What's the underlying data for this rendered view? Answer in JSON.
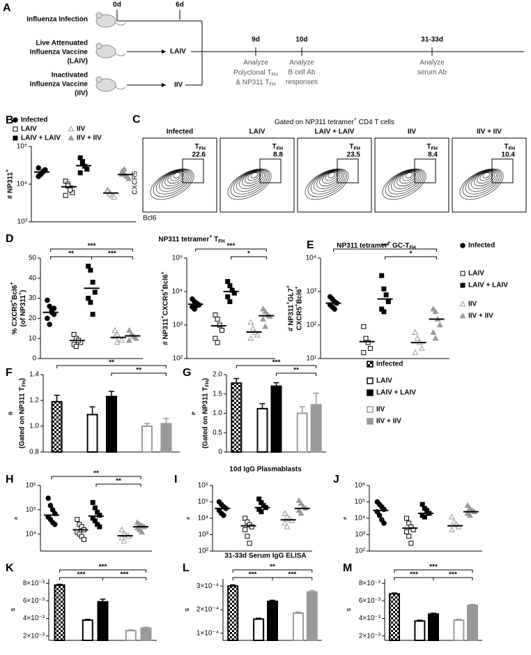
{
  "panel_a": {
    "label": "A",
    "start_day": "0d",
    "boost_day": "6d",
    "groups": [
      [
        "Influenza Infection"
      ],
      [
        "Live Attenuated",
        "Influenza Vaccine",
        "(LAIV)"
      ],
      [
        "Inactivated",
        "Influenza Vaccine",
        "(IIV)"
      ]
    ],
    "boosts": [
      "LAIV",
      "IIV"
    ],
    "analyses": [
      {
        "day": "9d",
        "lines": [
          "Analyze",
          [
            {
              "s": "Polyclonal T"
            },
            {
              "sub": "FH"
            }
          ],
          [
            {
              "s": "& NP311 T"
            },
            {
              "sub": "FH"
            }
          ]
        ]
      },
      {
        "day": "10d",
        "lines": [
          "Analyze",
          "B cell Ab",
          "responses"
        ]
      },
      {
        "day": "31-33d",
        "lines": [
          "Analyze",
          "serum Ab"
        ]
      }
    ]
  },
  "groups": [
    {
      "name": "Infected",
      "marker": "circle",
      "color": "#000000",
      "fill": true
    },
    {
      "name": "LAIV",
      "marker": "square",
      "color": "#000000",
      "fill": false
    },
    {
      "name": "LAIV + LAIV",
      "marker": "square",
      "color": "#000000",
      "fill": true
    },
    {
      "name": "IIV",
      "marker": "triangle",
      "color": "#999999",
      "fill": false
    },
    {
      "name": "IIV + IIV",
      "marker": "triangle",
      "color": "#999999",
      "fill": true
    }
  ],
  "panel_c": {
    "label": "C",
    "title": [
      {
        "s": "Gated on NP311 tetramer"
      },
      {
        "sup": "+"
      },
      {
        "s": " CD4 T cells"
      }
    ],
    "gate_label": [
      {
        "s": "T"
      },
      {
        "sub": "FH"
      }
    ],
    "x_axis": "Bcl6",
    "y_axis": "CXCR5",
    "plots": [
      {
        "name": "Infected",
        "gate": 22.6
      },
      {
        "name": "LAIV",
        "gate": 8.8
      },
      {
        "name": "LAIV + LAIV",
        "gate": 23.5
      },
      {
        "name": "IIV",
        "gate": 8.4
      },
      {
        "name": "IIV + IIV",
        "gate": 10.4
      }
    ]
  },
  "headings": [
    [
      {
        "s": "NP311 tetramer"
      },
      {
        "sup": "+"
      },
      {
        "s": " T"
      },
      {
        "sub": "FH"
      }
    ],
    [
      {
        "s": "NP311 tetramer"
      },
      {
        "sup": "+"
      },
      {
        "s": " GC-T"
      },
      {
        "sub": "FH"
      }
    ],
    "10d IgG Plasmablasts",
    "31-33d Serum IgG ELISA"
  ],
  "chart_data": [
    {
      "type": "strip",
      "label": "B",
      "log": true,
      "ylim": [
        1000,
        100000
      ],
      "yticks": [
        {
          "value": 1000,
          "label": "10³"
        },
        {
          "value": 10000,
          "label": "10⁴"
        },
        {
          "value": 100000,
          "label": "10⁵"
        }
      ],
      "ylabel": [
        [
          {
            "s": "# NP311"
          },
          {
            "sup": "+"
          }
        ]
      ],
      "series": [
        {
          "values": [
            16000,
            19000,
            21000,
            24000,
            27000,
            18000,
            22000
          ],
          "mean": 21000
        },
        {
          "values": [
            12000,
            10000,
            8000,
            6000,
            5000,
            9000,
            7000
          ],
          "mean": 8500
        },
        {
          "values": [
            50000,
            40000,
            30000,
            25000,
            20000,
            35000
          ],
          "mean": 31000
        },
        {
          "values": [
            7000,
            6000,
            5000,
            4500,
            6500,
            5500
          ],
          "mean": 5800
        },
        {
          "values": [
            22000,
            19000,
            16000,
            14000,
            18000,
            25000
          ],
          "mean": 18000
        }
      ]
    },
    {
      "type": "strip",
      "label": "D",
      "ylim": [
        0,
        50
      ],
      "yticks": [
        0,
        10,
        20,
        30,
        40,
        50
      ],
      "ylabel": [
        [
          {
            "s": "% CXCR5"
          },
          {
            "sup": "+"
          },
          {
            "s": "Bcl6"
          },
          {
            "sup": "+"
          }
        ],
        [
          {
            "s": "(of NP311"
          },
          {
            "sup": "+"
          },
          {
            "s": ")"
          }
        ]
      ],
      "series": [
        {
          "values": [
            29,
            26,
            24,
            22,
            20,
            17,
            23,
            25
          ],
          "mean": 23
        },
        {
          "values": [
            12,
            10,
            9,
            8,
            7,
            6,
            9
          ],
          "mean": 9
        },
        {
          "values": [
            46,
            44,
            38,
            33,
            30,
            28,
            22
          ],
          "mean": 35
        },
        {
          "values": [
            14,
            12,
            10,
            9,
            11,
            8
          ],
          "mean": 10.5
        },
        {
          "values": [
            14,
            12,
            11,
            10,
            9,
            12
          ],
          "mean": 11.3
        }
      ],
      "brackets": [
        {
          "from": 0,
          "to": 2,
          "label": "**"
        },
        {
          "from": 0,
          "to": 4,
          "label": "***"
        },
        {
          "from": 2,
          "to": 4,
          "label": "***"
        }
      ]
    },
    {
      "type": "strip",
      "log": true,
      "ylim": [
        100,
        100000
      ],
      "yticks": [
        {
          "value": 100,
          "label": "10²"
        },
        {
          "value": 1000,
          "label": "10³"
        },
        {
          "value": 10000,
          "label": "10⁴"
        },
        {
          "value": 100000,
          "label": "10⁵"
        }
      ],
      "ylabel": [
        [
          {
            "s": "# NP311"
          },
          {
            "sup": "+"
          },
          {
            "s": "CXCR5"
          },
          {
            "sup": "+"
          },
          {
            "s": "Bcl6"
          },
          {
            "sup": "+"
          }
        ]
      ],
      "series": [
        {
          "values": [
            6000,
            5000,
            4500,
            4000,
            3500,
            3000,
            3800
          ],
          "mean": 4200
        },
        {
          "values": [
            2000,
            1500,
            1000,
            700,
            400,
            300
          ],
          "mean": 950
        },
        {
          "values": [
            20000,
            15000,
            11000,
            9000,
            7000,
            5000
          ],
          "mean": 10000
        },
        {
          "values": [
            1200,
            800,
            600,
            500,
            400
          ],
          "mean": 620
        },
        {
          "values": [
            3000,
            2500,
            2000,
            1800,
            1500,
            900
          ],
          "mean": 1900
        }
      ],
      "brackets": [
        {
          "from": 0,
          "to": 4,
          "label": "***"
        },
        {
          "from": 2,
          "to": 4,
          "label": "*"
        }
      ]
    },
    {
      "type": "strip",
      "label": "E",
      "log": true,
      "ylim": [
        10,
        10000
      ],
      "yticks": [
        {
          "value": 10,
          "label": "10¹"
        },
        {
          "value": 100,
          "label": "10²"
        },
        {
          "value": 1000,
          "label": "10³"
        },
        {
          "value": 10000,
          "label": "10⁴"
        }
      ],
      "ylabel": [
        [
          {
            "s": "# NP311"
          },
          {
            "sup": "+"
          },
          {
            "s": "GL7"
          },
          {
            "sup": "+"
          }
        ],
        [
          {
            "s": "CXCR5"
          },
          {
            "sup": "+"
          },
          {
            "s": "Bcl6"
          },
          {
            "sup": "+"
          }
        ]
      ],
      "series": [
        {
          "values": [
            700,
            600,
            500,
            450,
            400,
            350,
            300
          ],
          "mean": 450
        },
        {
          "values": [
            90,
            40,
            30,
            20,
            15
          ],
          "mean": 32
        },
        {
          "values": [
            3000,
            1200,
            800,
            500,
            300,
            250
          ],
          "mean": 600
        },
        {
          "values": [
            60,
            40,
            30,
            20,
            15
          ],
          "mean": 30
        },
        {
          "values": [
            300,
            250,
            150,
            100,
            60,
            40
          ],
          "mean": 150
        }
      ],
      "brackets": [
        {
          "from": 0,
          "to": 4,
          "label": "***"
        },
        {
          "from": 2,
          "to": 4,
          "label": "*"
        }
      ]
    },
    {
      "type": "bar",
      "label": "F",
      "ylim": [
        0.8,
        1.4
      ],
      "yticks": [
        0.8,
        {
          "value": 1,
          "label": "1.0"
        },
        1.2,
        1.4
      ],
      "ylabel": [
        [
          "Bcl6 nMFI"
        ],
        [
          {
            "s": "(Gated on NP311 T"
          },
          {
            "sub": "FH"
          },
          {
            "s": ")"
          }
        ]
      ],
      "values": [
        1.19,
        1.09,
        1.23,
        1.0,
        1.02
      ],
      "errors": [
        0.05,
        0.06,
        0.04,
        0.02,
        0.04
      ],
      "brackets": [
        {
          "from": 0,
          "to": 4,
          "label": "**"
        },
        {
          "from": 2,
          "to": 4,
          "label": "**"
        }
      ]
    },
    {
      "type": "bar",
      "label": "G",
      "ylim": [
        0,
        2
      ],
      "yticks": [
        0,
        0.5,
        {
          "value": 1,
          "label": "1.0"
        },
        1.5,
        {
          "value": 2,
          "label": "2.0"
        }
      ],
      "ylabel": [
        [
          "PD1 nMFI"
        ],
        [
          {
            "s": "(Gated on NP311 T"
          },
          {
            "sub": "FH"
          },
          {
            "s": ")"
          }
        ]
      ],
      "values": [
        1.78,
        1.12,
        1.7,
        1.0,
        1.22
      ],
      "errors": [
        0.12,
        0.13,
        0.09,
        0.17,
        0.3
      ],
      "brackets": [
        {
          "from": 0,
          "to": 4,
          "label": "***"
        },
        {
          "from": 2,
          "to": 4,
          "label": "**"
        }
      ]
    },
    {
      "type": "strip",
      "label": "H",
      "log": true,
      "ylim": [
        2000,
        1000000
      ],
      "yticks": [
        {
          "value": 10000,
          "label": "10⁴"
        },
        {
          "value": 100000,
          "label": "10⁵"
        },
        {
          "value": 1000000,
          "label": "10⁶"
        }
      ],
      "ylabel": [
        [
          "# IgG1 Plasmablast"
        ]
      ],
      "series": [
        {
          "values": [
            300000,
            150000,
            100000,
            70000,
            50000,
            40000,
            30000,
            25000
          ],
          "mean": 60000
        },
        {
          "values": [
            40000,
            25000,
            20000,
            15000,
            12000,
            10000,
            8000,
            6000
          ],
          "mean": 15000
        },
        {
          "values": [
            200000,
            120000,
            80000,
            60000,
            45000,
            35000,
            25000,
            20000
          ],
          "mean": 55000
        },
        {
          "values": [
            15000,
            10000,
            9000,
            8000,
            7000,
            5000
          ],
          "mean": 8500
        },
        {
          "values": [
            30000,
            25000,
            22000,
            20000,
            18000,
            15000,
            12000
          ],
          "mean": 20000
        }
      ],
      "brackets": [
        {
          "from": 0,
          "to": 4,
          "label": "**"
        },
        {
          "from": 2,
          "to": 4,
          "label": "**"
        }
      ]
    },
    {
      "type": "strip",
      "label": "I",
      "log": true,
      "ylim": [
        100,
        1000000
      ],
      "yticks": [
        {
          "value": 100,
          "label": "10²"
        },
        {
          "value": 1000,
          "label": "10³"
        },
        {
          "value": 10000,
          "label": "10⁴"
        },
        {
          "value": 100000,
          "label": "10⁵"
        },
        {
          "value": 1000000,
          "label": "10⁶"
        }
      ],
      "ylabel": [
        [
          "# IgG2c Plasmablast"
        ]
      ],
      "series": [
        {
          "values": [
            100000,
            70000,
            50000,
            40000,
            30000,
            20000,
            15000
          ],
          "mean": 40000
        },
        {
          "values": [
            10000,
            6000,
            4000,
            3000,
            2000,
            800,
            300
          ],
          "mean": 3500
        },
        {
          "values": [
            150000,
            90000,
            60000,
            45000,
            35000,
            25000
          ],
          "mean": 45000
        },
        {
          "values": [
            20000,
            12000,
            9000,
            7000,
            5000,
            3000
          ],
          "mean": 8000
        },
        {
          "values": [
            120000,
            80000,
            50000,
            40000,
            30000,
            20000
          ],
          "mean": 40000
        }
      ]
    },
    {
      "type": "strip",
      "label": "J",
      "log": true,
      "ylim": [
        100,
        1000000
      ],
      "yticks": [
        {
          "value": 100,
          "label": "10²"
        },
        {
          "value": 1000,
          "label": "10³"
        },
        {
          "value": 10000,
          "label": "10⁴"
        },
        {
          "value": 100000,
          "label": "10⁵"
        },
        {
          "value": 1000000,
          "label": "10⁶"
        }
      ],
      "ylabel": [
        [
          "# IgG2b Plasmablast"
        ]
      ],
      "series": [
        {
          "values": [
            100000,
            70000,
            50000,
            35000,
            25000,
            15000,
            8000,
            5000
          ],
          "mean": 30000
        },
        {
          "values": [
            10000,
            5000,
            3000,
            2000,
            1500,
            800,
            300
          ],
          "mean": 2500
        },
        {
          "values": [
            70000,
            40000,
            30000,
            20000,
            15000,
            12000
          ],
          "mean": 20000
        },
        {
          "values": [
            12000,
            6000,
            4000,
            3000,
            2000
          ],
          "mean": 3500
        },
        {
          "values": [
            60000,
            40000,
            30000,
            25000,
            20000,
            15000
          ],
          "mean": 25000
        }
      ]
    },
    {
      "type": "bar",
      "label": "K",
      "ylim": [
        0.0015,
        0.0085
      ],
      "yticks": [
        {
          "value": 0.002,
          "label": "2×10⁻³"
        },
        {
          "value": 0.004,
          "label": "4×10⁻³"
        },
        {
          "value": 0.006,
          "label": "6×10⁻³"
        },
        {
          "value": 0.008,
          "label": "8×10⁻³"
        }
      ],
      "ylabel": [
        [
          "Serum IgG1 AUC"
        ]
      ],
      "values": [
        0.0078,
        0.0038,
        0.0059,
        0.0026,
        0.0029
      ],
      "errors": [
        0.0001,
        0.0001,
        0.0003,
        0.0001,
        0.0001
      ],
      "brackets": [
        {
          "from": 0,
          "to": 2,
          "label": "***"
        },
        {
          "from": 0,
          "to": 4,
          "label": "***"
        },
        {
          "from": 2,
          "to": 4,
          "label": "***"
        }
      ]
    },
    {
      "type": "bar",
      "label": "L",
      "ylim": [
        7e-05,
        0.00033
      ],
      "yticks": [
        {
          "value": 0.0001,
          "label": "1×10⁻⁴"
        },
        {
          "value": 0.0002,
          "label": "2×10⁻⁴"
        },
        {
          "value": 0.0003,
          "label": "3×10⁻⁴"
        }
      ],
      "ylabel": [
        [
          "Serum IgG2c AUC"
        ]
      ],
      "values": [
        0.0003,
        0.00016,
        0.000235,
        0.000185,
        0.000275
      ],
      "errors": [
        5e-06,
        4e-06,
        5e-06,
        5e-06,
        6e-06
      ],
      "brackets": [
        {
          "from": 0,
          "to": 2,
          "label": "***"
        },
        {
          "from": 0,
          "to": 4,
          "label": "**"
        },
        {
          "from": 2,
          "to": 4,
          "label": "***"
        }
      ]
    },
    {
      "type": "bar",
      "label": "M",
      "ylim": [
        0.0015,
        0.0085
      ],
      "yticks": [
        {
          "value": 0.002,
          "label": "2×10⁻³"
        },
        {
          "value": 0.004,
          "label": "4×10⁻³"
        },
        {
          "value": 0.006,
          "label": "6×10⁻³"
        },
        {
          "value": 0.008,
          "label": "8×10⁻³"
        }
      ],
      "ylabel": [
        [
          "Serum IgG2b AUC"
        ]
      ],
      "values": [
        0.0068,
        0.0037,
        0.0045,
        0.0038,
        0.0055
      ],
      "errors": [
        0.0001,
        0.0001,
        0.0001,
        0.0001,
        0.0001
      ],
      "brackets": [
        {
          "from": 0,
          "to": 2,
          "label": "***"
        },
        {
          "from": 0,
          "to": 4,
          "label": "***"
        },
        {
          "from": 2,
          "to": 4,
          "label": "***"
        }
      ]
    }
  ]
}
